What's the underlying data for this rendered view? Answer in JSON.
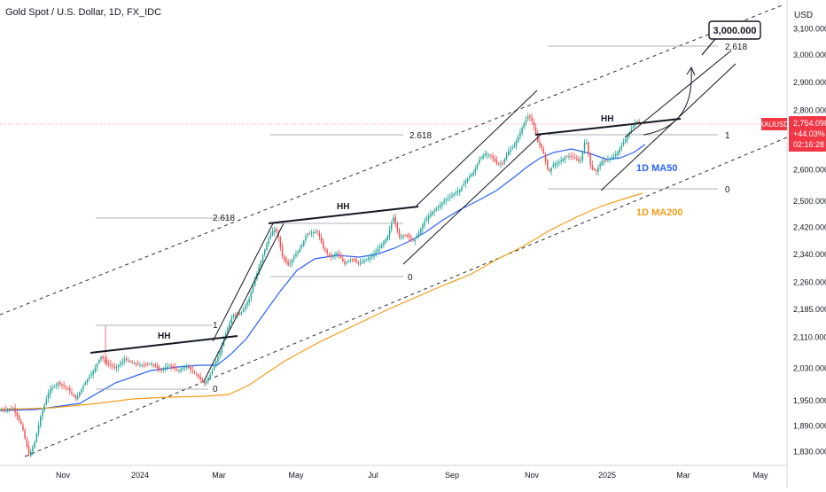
{
  "header": {
    "title": "Gold Spot / U.S. Dollar, 1D, FX_IDC"
  },
  "price_axis": {
    "currency": "USD",
    "ticks": [
      "3,100.000",
      "3,000.000",
      "2,900.000",
      "2,800.000",
      "2,700.000",
      "2,600.000",
      "2,500.000",
      "2,420.000",
      "2,340.000",
      "2,260.000",
      "2,185.000",
      "2,110.000",
      "2,030.000",
      "1,950.000",
      "1,890.000",
      "1,830.000"
    ],
    "symbol_tag": "XAUUSD",
    "last_price": "2,754.098",
    "change": "+44.03%",
    "countdown": "02:16:28"
  },
  "time_axis": {
    "ticks": [
      "Nov",
      "2024",
      "Mar",
      "May",
      "Jul",
      "Sep",
      "Nov",
      "2025",
      "Mar",
      "May"
    ]
  },
  "annotations": {
    "target_label": "3,000.000",
    "hh": "HH",
    "fib_2618": "2.618",
    "fib_1": "1",
    "fib_0": "0",
    "ma50_label": "1D MA50",
    "ma200_label": "1D MA200"
  },
  "colors": {
    "up": "#26a69a",
    "down": "#ef5350",
    "ma50": "#2962ff",
    "ma200": "#f59d16",
    "badge": "#f23645"
  },
  "chart_data": {
    "type": "candlestick",
    "title": "Gold Spot / U.S. Dollar, 1D, FX_IDC",
    "ylim": [
      1800,
      3170
    ],
    "y_scale": "log",
    "x_ticks": [
      "Nov",
      "2024",
      "Mar",
      "May",
      "Jul",
      "Sep",
      "Nov",
      "2025",
      "Mar",
      "May"
    ],
    "key_points": [
      {
        "date": "2023-10-06",
        "close": 1830
      },
      {
        "date": "2023-12-04",
        "high": 2150
      },
      {
        "date": "2024-02-14",
        "low": 1985
      },
      {
        "date": "2024-04-12",
        "high": 2430
      },
      {
        "date": "2024-07-17",
        "high": 2483
      },
      {
        "date": "2024-10-31",
        "high": 2790
      },
      {
        "date": "2024-11-14",
        "low": 2537
      },
      {
        "date": "2025-01-24",
        "close": 2754.098
      }
    ],
    "series": [
      {
        "name": "1D MA50"
      },
      {
        "name": "1D MA200"
      }
    ]
  }
}
